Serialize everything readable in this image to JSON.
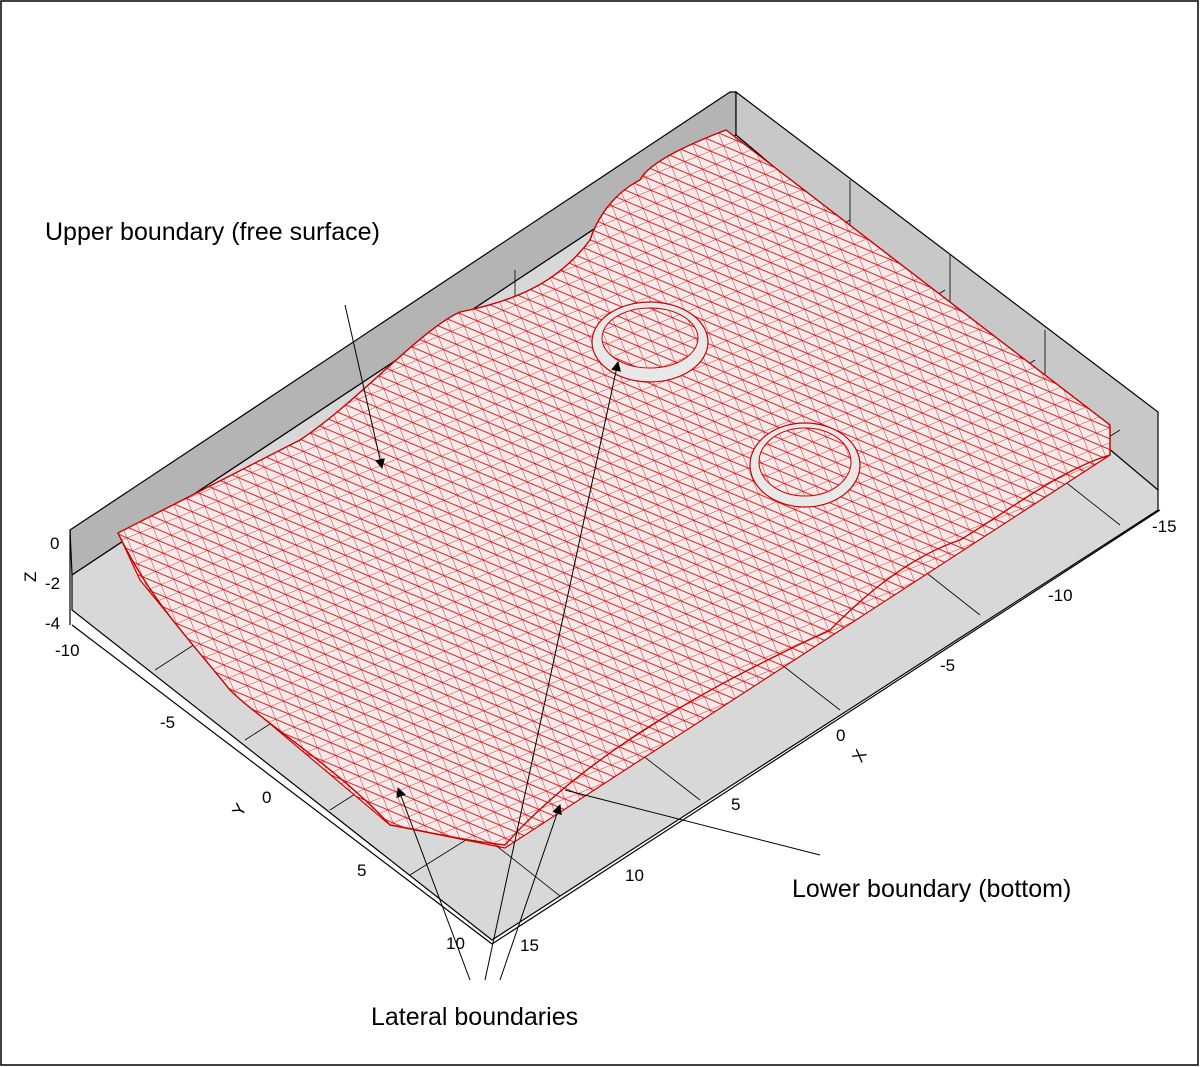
{
  "annotations": {
    "upper": "Upper boundary (free surface)",
    "lower": "Lower boundary (bottom)",
    "lateral": "Lateral boundaries"
  },
  "axes": {
    "x": {
      "label": "X",
      "ticks": [
        "-15",
        "-10",
        "-5",
        "0",
        "5",
        "10",
        "15"
      ]
    },
    "y": {
      "label": "Y",
      "ticks": [
        "-10",
        "-5",
        "0",
        "5",
        "10"
      ]
    },
    "z": {
      "label": "Z",
      "ticks": [
        "0",
        "-2",
        "-4"
      ]
    }
  },
  "colors": {
    "mesh": "#cc0000",
    "mesh_fill": "#f7eaea",
    "floor": "#d8d8d8",
    "back_wall": "#b4b4b4",
    "side_wall": "#c8c8c8",
    "frame": "#000000"
  }
}
